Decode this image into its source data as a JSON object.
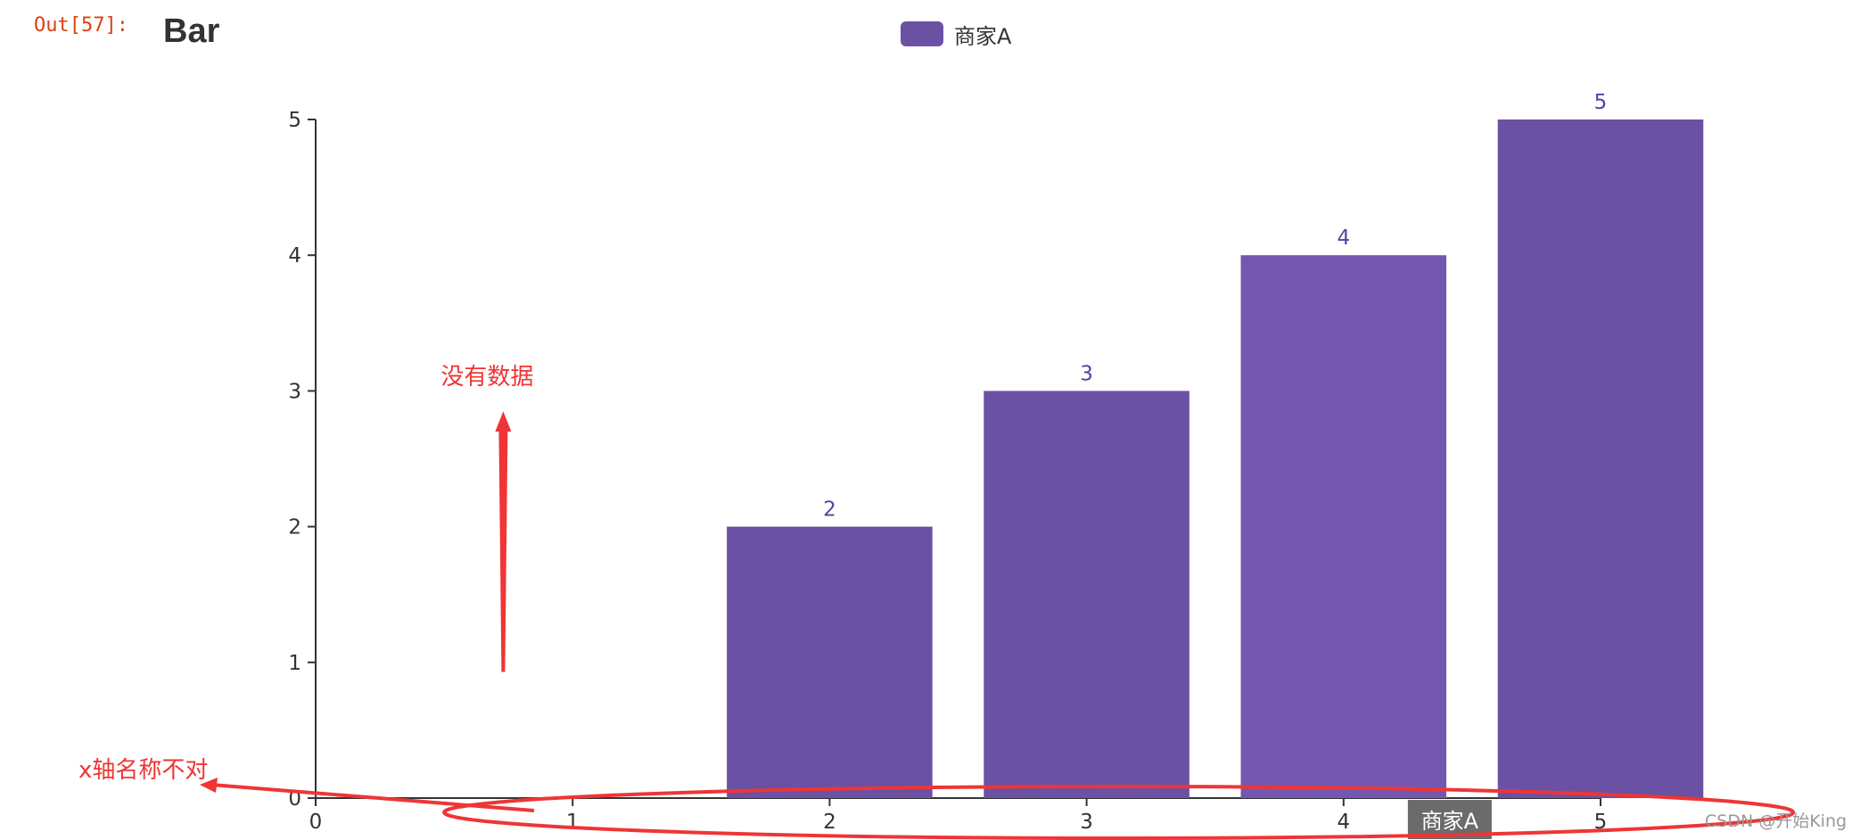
{
  "cell": {
    "prompt": "Out[57]:"
  },
  "chart_data": {
    "type": "bar",
    "title": "Bar",
    "legend": {
      "position": "top-center",
      "entries": [
        "商家A"
      ]
    },
    "xlabel": "商家A",
    "ylabel": "",
    "categories": [
      "0",
      "1",
      "2",
      "3",
      "4",
      "5"
    ],
    "series": [
      {
        "name": "商家A",
        "values": [
          null,
          null,
          2,
          3,
          4,
          5
        ]
      }
    ],
    "bar_categories": [
      2,
      3,
      4,
      5
    ],
    "x_ticks": [
      "0",
      "1",
      "2",
      "3",
      "4",
      "5"
    ],
    "y_ticks": [
      "0",
      "1",
      "2",
      "3",
      "4",
      "5"
    ],
    "ylim": [
      0,
      5
    ],
    "xlim": [
      0,
      5
    ],
    "grid": false,
    "colors": {
      "bar": "#6a51a3",
      "bar_highlight": "#7457b0",
      "label": "#5c3fa3",
      "annotation": "#ef3535",
      "axis_name_bg": "#6b6b6b"
    },
    "annotations": [
      {
        "text": "没有数据",
        "type": "arrow-up"
      },
      {
        "text": "x轴名称不对",
        "type": "arrow-left-ellipse"
      }
    ]
  },
  "watermark": "CSDN @开始King"
}
